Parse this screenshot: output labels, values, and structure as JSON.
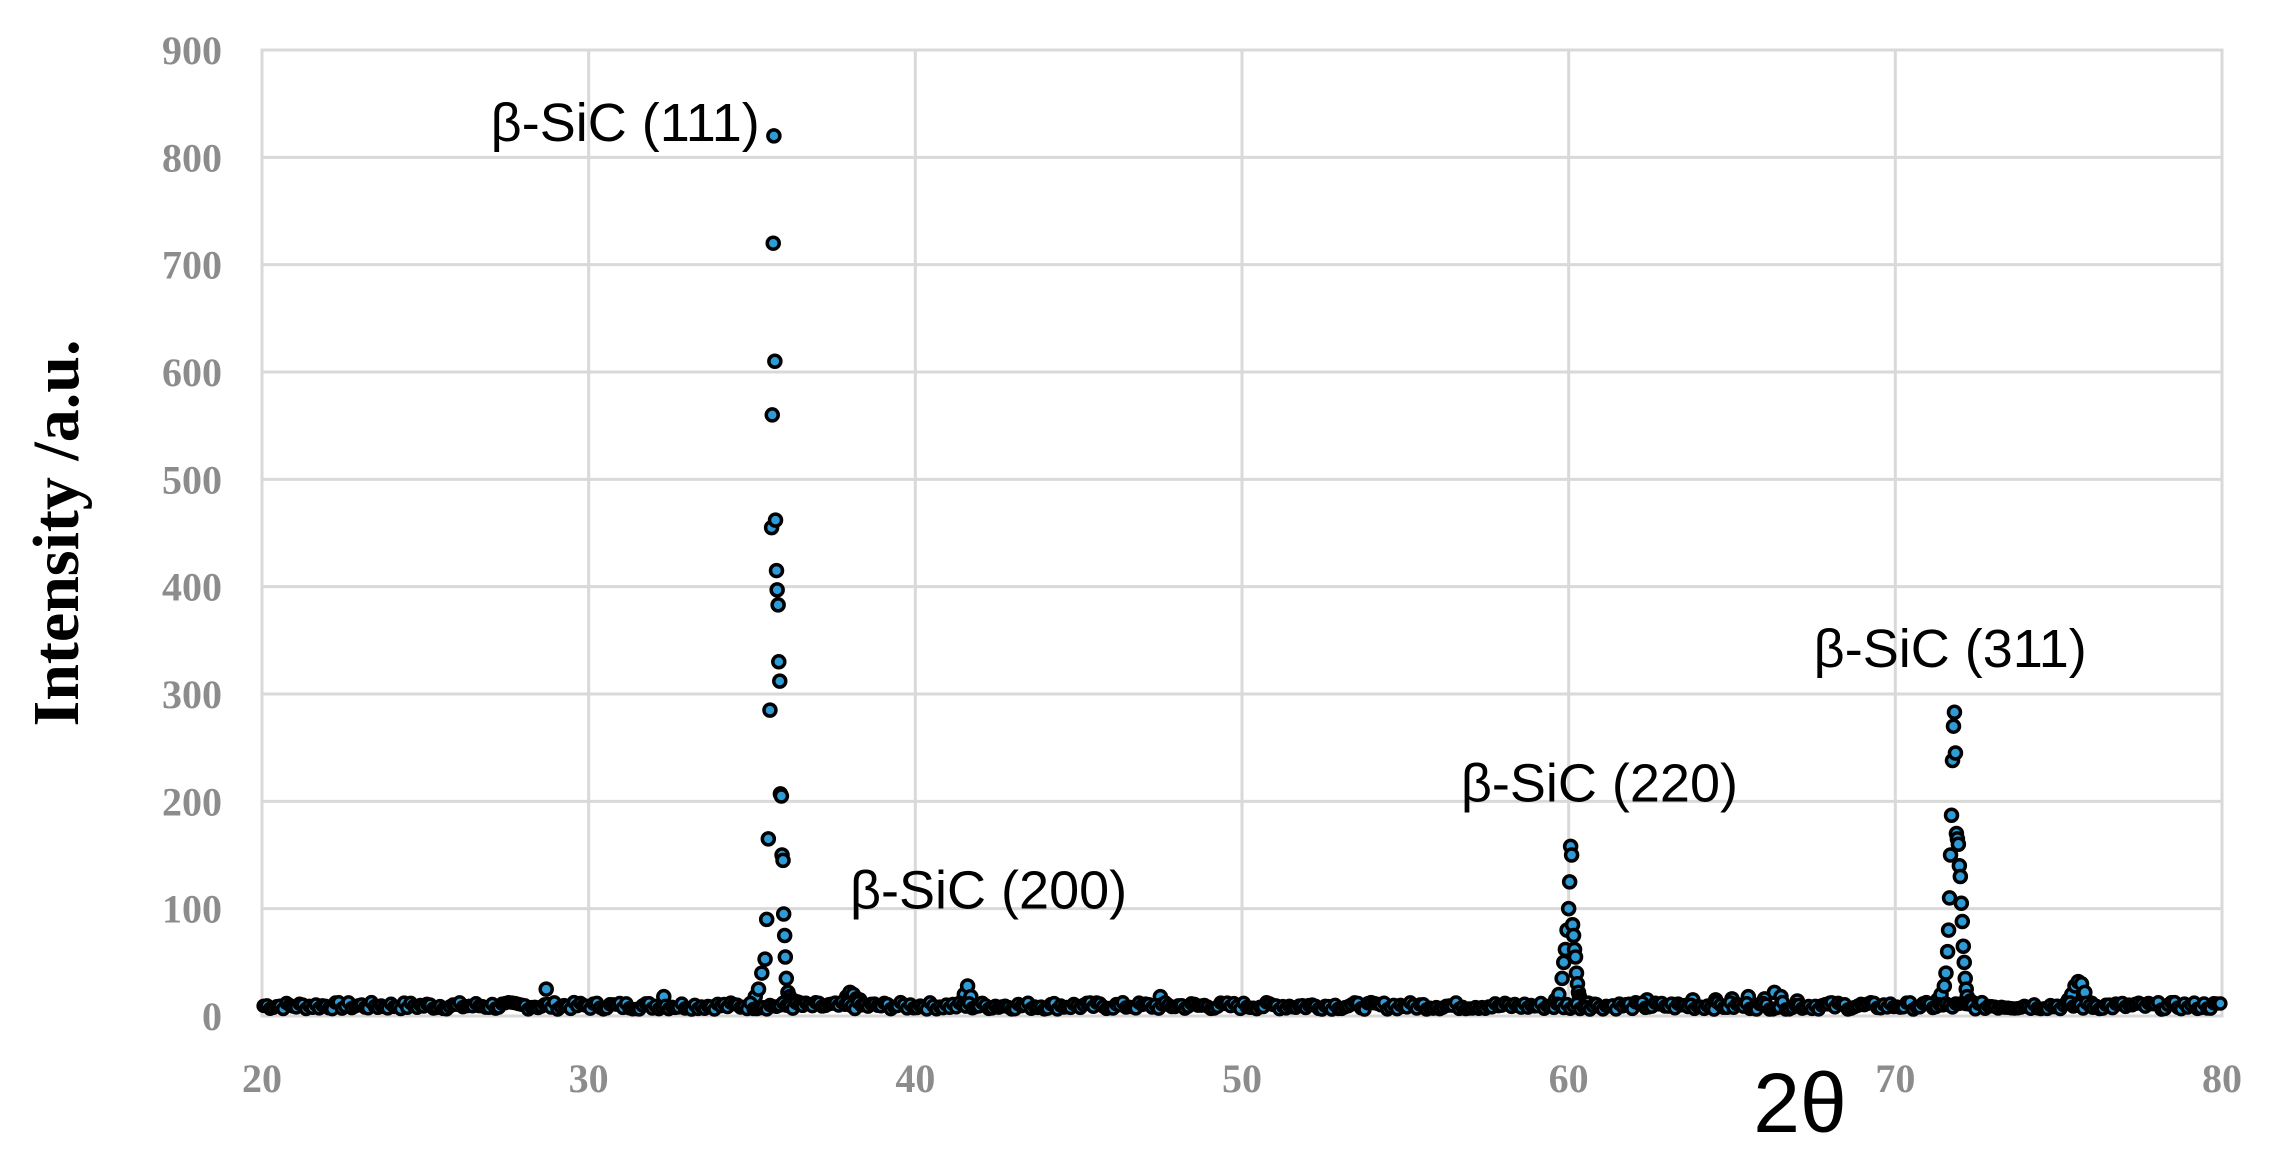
{
  "chart_data": {
    "type": "scatter",
    "xlabel": "2θ",
    "ylabel": "Intensity /a.u.",
    "xlim": [
      20,
      80
    ],
    "ylim": [
      0,
      900
    ],
    "x_ticks": [
      20,
      30,
      40,
      50,
      60,
      70,
      80
    ],
    "y_ticks": [
      0,
      100,
      200,
      300,
      400,
      500,
      600,
      700,
      800,
      900
    ],
    "grid": true,
    "legend": "none",
    "marker_color": "#2e9bd6",
    "marker_edge_color": "#000000",
    "series": [
      {
        "x": [
          35.0,
          35.1,
          35.2,
          35.3,
          35.4,
          35.45,
          35.5,
          35.55,
          35.6,
          35.62,
          35.65,
          35.67,
          35.7,
          35.72,
          35.75,
          35.77,
          35.8,
          35.82,
          35.85,
          35.87,
          35.9,
          35.92,
          35.95,
          35.97,
          36.0,
          36.02,
          36.05,
          36.1,
          36.15,
          36.2,
          36.3,
          36.4,
          36.5,
          37.9,
          38.0,
          38.1,
          38.2,
          38.3,
          41.5,
          41.6,
          41.7,
          28.7,
          32.3,
          47.5,
          59.6,
          59.7,
          59.8,
          59.85,
          59.9,
          59.95,
          60.0,
          60.03,
          60.06,
          60.09,
          60.12,
          60.15,
          60.18,
          60.21,
          60.24,
          60.27,
          60.3,
          60.33,
          60.36,
          60.4,
          60.5,
          60.6,
          60.8,
          62.4,
          63.8,
          64.5,
          65.0,
          65.5,
          66.0,
          66.3,
          66.5,
          67.0,
          68.0,
          71.2,
          71.3,
          71.4,
          71.5,
          71.55,
          71.6,
          71.63,
          71.66,
          71.69,
          71.72,
          71.75,
          71.78,
          71.81,
          71.84,
          71.87,
          71.9,
          71.93,
          71.96,
          71.99,
          72.02,
          72.05,
          72.08,
          72.11,
          72.14,
          72.17,
          72.2,
          72.3,
          72.4,
          72.6,
          75.3,
          75.4,
          75.5,
          75.6,
          75.7,
          75.8,
          76.0
        ],
        "y": [
          12,
          18,
          25,
          40,
          53,
          90,
          165,
          285,
          455,
          560,
          720,
          820,
          610,
          462,
          415,
          397,
          383,
          330,
          312,
          207,
          205,
          150,
          145,
          95,
          75,
          55,
          35,
          22,
          18,
          15,
          14,
          13,
          12,
          18,
          22,
          20,
          16,
          15,
          20,
          28,
          18,
          25,
          18,
          18,
          15,
          20,
          35,
          50,
          62,
          80,
          100,
          125,
          158,
          150,
          85,
          75,
          62,
          55,
          40,
          30,
          22,
          18,
          15,
          14,
          12,
          12,
          11,
          15,
          15,
          15,
          16,
          18,
          16,
          22,
          18,
          14,
          12,
          12,
          15,
          20,
          28,
          40,
          60,
          80,
          110,
          150,
          187,
          238,
          270,
          283,
          245,
          170,
          165,
          160,
          140,
          130,
          105,
          88,
          65,
          50,
          35,
          25,
          18,
          14,
          12,
          11,
          15,
          20,
          28,
          32,
          30,
          22,
          12
        ]
      }
    ],
    "annotations": [
      {
        "text": "β-SiC (111)",
        "x": 27.0,
        "y": 815
      },
      {
        "text": "β-SiC (200)",
        "x": 38.0,
        "y": 100
      },
      {
        "text": "β-SiC (220)",
        "x": 56.7,
        "y": 200
      },
      {
        "text": "β-SiC (311)",
        "x": 67.5,
        "y": 325
      }
    ]
  }
}
